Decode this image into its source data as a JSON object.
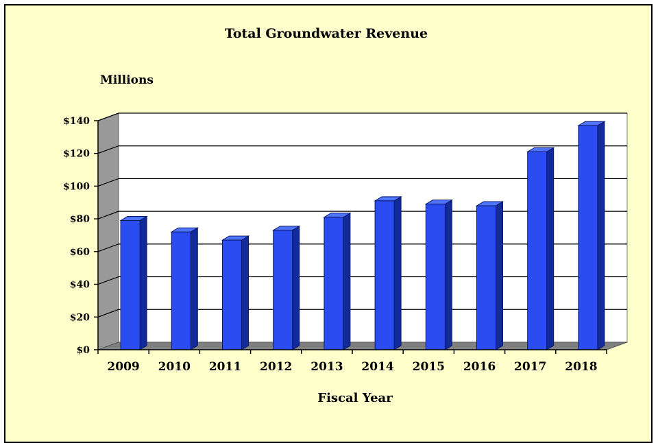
{
  "chart_data": {
    "type": "bar",
    "title": "Total Groundwater Revenue",
    "unit_label": "Millions",
    "xlabel": "Fiscal Year",
    "ylabel": "",
    "categories": [
      "2009",
      "2010",
      "2011",
      "2012",
      "2013",
      "2014",
      "2015",
      "2016",
      "2017",
      "2018"
    ],
    "values": [
      79,
      72,
      67,
      73,
      81,
      91,
      89,
      88,
      121,
      137
    ],
    "ylim": [
      0,
      140
    ],
    "yticks": [
      0,
      20,
      40,
      60,
      80,
      100,
      120,
      140
    ],
    "ytick_labels": [
      "$0",
      "$20",
      "$40",
      "$60",
      "$80",
      "$100",
      "$120",
      "$140"
    ],
    "grid": true,
    "legend": "none",
    "colors": {
      "background": "#ffffcc",
      "plot_wall": "#ffffff",
      "floor": "#808080",
      "side_wall": "#999999",
      "bar_front": "#2a4cf0",
      "bar_top": "#4f74ff",
      "bar_side": "#132a9a",
      "gridline": "#000000"
    }
  }
}
